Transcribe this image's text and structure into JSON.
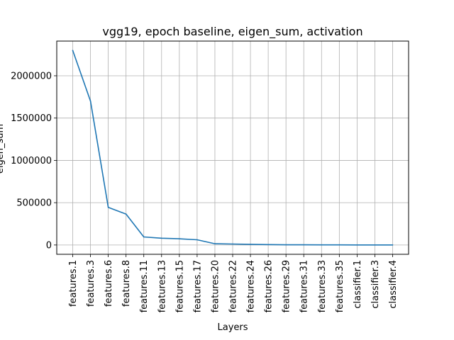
{
  "chart_data": {
    "type": "line",
    "title": "vgg19, epoch baseline, eigen_sum, activation",
    "xlabel": "Layers",
    "ylabel": "eigen_sum",
    "categories": [
      "features.1",
      "features.3",
      "features.6",
      "features.8",
      "features.11",
      "features.13",
      "features.15",
      "features.17",
      "features.20",
      "features.22",
      "features.24",
      "features.26",
      "features.29",
      "features.31",
      "features.33",
      "features.35",
      "classifier.1",
      "classifier.3",
      "classifier.4"
    ],
    "series": [
      {
        "values": [
          2300000,
          1700000,
          445000,
          365000,
          95000,
          80000,
          73000,
          62000,
          15000,
          11000,
          8000,
          5000,
          2500,
          2000,
          1500,
          1200,
          900,
          700,
          500
        ]
      }
    ],
    "yticks": [
      0,
      500000,
      1000000,
      1500000,
      2000000
    ],
    "ytick_labels": [
      "0",
      "500000",
      "1000000",
      "1500000",
      "2000000"
    ],
    "ylim": [
      -110000,
      2410000
    ],
    "grid": true,
    "line_color": "#1f77b4"
  }
}
